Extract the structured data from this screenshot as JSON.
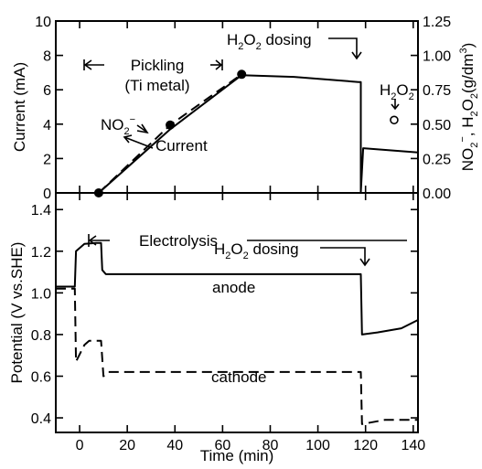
{
  "chart_data": [
    {
      "type": "line",
      "panel": "top",
      "xlabel": "",
      "ylabel": "Current (mA)",
      "y2label": {
        "a": "NO",
        "a_sub": "2",
        "a_sup": "−",
        "b": ", H",
        "b_sub": "2",
        "c": "O",
        "c_sub": "2",
        "d": "(g/dm",
        "d_sup": "3",
        "e": ")"
      },
      "xlim": [
        -10,
        142
      ],
      "ylim": [
        0,
        10
      ],
      "y2lim": [
        0,
        1.25
      ],
      "yticks": [
        "0",
        "2",
        "4",
        "6",
        "8",
        "10"
      ],
      "y2ticks": [
        "0.00",
        "0.25",
        "0.50",
        "0.75",
        "1.00",
        "1.25"
      ],
      "series": [
        {
          "name": "Current",
          "style": "solid",
          "points": [
            [
              -10,
              0
            ],
            [
              8,
              0
            ],
            [
              38,
              3.7
            ],
            [
              68,
              6.85
            ],
            [
              90,
              6.75
            ],
            [
              117,
              6.45
            ],
            [
              118,
              6.45
            ],
            [
              118,
              0.05
            ],
            [
              119,
              2.6
            ],
            [
              142,
              2.35
            ]
          ]
        },
        {
          "name": "NO2-",
          "style": "dashed",
          "points": [
            [
              8,
              0
            ],
            [
              38,
              3.95
            ],
            [
              68,
              6.9
            ]
          ]
        }
      ],
      "markers": [
        {
          "x": 8,
          "y": 0,
          "fill": "filled"
        },
        {
          "x": 38,
          "y": 3.95,
          "fill": "filled"
        },
        {
          "x": 68,
          "y": 6.9,
          "fill": "filled"
        },
        {
          "x": 132,
          "y": 0.53,
          "axis": "right",
          "fill": "open"
        }
      ],
      "annotations": {
        "pickling_1": "Pickling",
        "pickling_2": "(Ti metal)",
        "h2o2_dosing": {
          "a": "H",
          "a_sub": "2",
          "b": "O",
          "b_sub": "2",
          "c": " dosing"
        },
        "h2o2": {
          "a": "H",
          "a_sub": "2",
          "b": "O",
          "b_sub": "2"
        },
        "no2": {
          "a": "NO",
          "a_sub": "2",
          "a_sup": "−"
        },
        "current": "Current"
      }
    },
    {
      "type": "line",
      "panel": "bottom",
      "xlabel": "Time (min)",
      "ylabel": "Potential (V vs.SHE)",
      "xlim": [
        -10,
        142
      ],
      "ylim": [
        0.33,
        1.48
      ],
      "xticks": [
        "0",
        "20",
        "40",
        "60",
        "80",
        "100",
        "120",
        "140"
      ],
      "yticks": [
        "0.4",
        "0.6",
        "0.8",
        "1.0",
        "1.2",
        "1.4"
      ],
      "series": [
        {
          "name": "anode",
          "style": "solid",
          "points": [
            [
              -10,
              1.03
            ],
            [
              -2,
              1.03
            ],
            [
              -1.5,
              1.2
            ],
            [
              2,
              1.235
            ],
            [
              7,
              1.24
            ],
            [
              9,
              1.24
            ],
            [
              9.5,
              1.11
            ],
            [
              11,
              1.09
            ],
            [
              118,
              1.09
            ],
            [
              118.5,
              0.8
            ],
            [
              125,
              0.81
            ],
            [
              135,
              0.83
            ],
            [
              142,
              0.87
            ]
          ]
        },
        {
          "name": "cathode",
          "style": "dashed",
          "points": [
            [
              -10,
              1.02
            ],
            [
              -2,
              1.02
            ],
            [
              -1.5,
              0.67
            ],
            [
              2,
              0.75
            ],
            [
              4,
              0.77
            ],
            [
              9,
              0.77
            ],
            [
              10,
              0.6
            ],
            [
              12,
              0.62
            ],
            [
              118,
              0.62
            ],
            [
              118.5,
              0.37
            ],
            [
              128,
              0.39
            ],
            [
              142,
              0.39
            ]
          ]
        }
      ],
      "annotations": {
        "electrolysis": "Electrolysis",
        "h2o2_dosing": {
          "a": "H",
          "a_sub": "2",
          "b": "O",
          "b_sub": "2",
          "c": " dosing"
        },
        "anode": "anode",
        "cathode": "cathode"
      }
    }
  ]
}
